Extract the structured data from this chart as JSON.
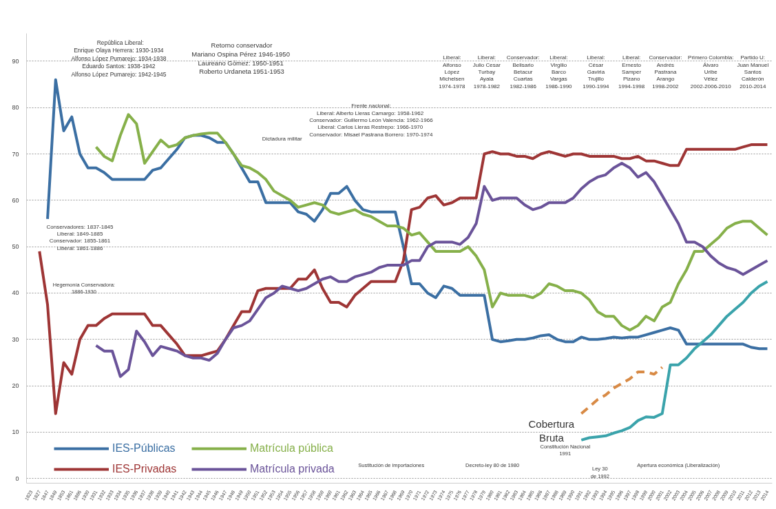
{
  "chart_data": {
    "type": "line",
    "categories": [
      "1823",
      "1827",
      "1847",
      "1849",
      "1853",
      "1861",
      "1886",
      "1930",
      "1931",
      "1932",
      "1933",
      "1934",
      "1935",
      "1936",
      "1937",
      "1938",
      "1939",
      "1940",
      "1941",
      "1942",
      "1943",
      "1944",
      "1945",
      "1946",
      "1947",
      "1948",
      "1949",
      "1950",
      "1951",
      "1952",
      "1953",
      "1954",
      "1955",
      "1956",
      "1957",
      "1958",
      "1959",
      "1960",
      "1961",
      "1962",
      "1963",
      "1964",
      "1965",
      "1966",
      "1967",
      "1968",
      "1969",
      "1970",
      "1971",
      "1972",
      "1973",
      "1974",
      "1975",
      "1976",
      "1977",
      "1978",
      "1979",
      "1980",
      "1981",
      "1982",
      "1983",
      "1984",
      "1985",
      "1986",
      "1987",
      "1988",
      "1989",
      "1990",
      "1991",
      "1992",
      "1993",
      "1994",
      "1995",
      "1996",
      "1997",
      "1998",
      "1999",
      "2000",
      "2001",
      "2002",
      "2003",
      "2004",
      "2005",
      "2006",
      "2007",
      "2008",
      "2009",
      "2010",
      "2011",
      "2012",
      "2013",
      "2014"
    ],
    "series": [
      {
        "name": "IES-Públicas",
        "color": "#3b6fa3",
        "values": [
          null,
          null,
          56,
          86,
          75,
          78,
          70,
          67,
          67,
          66,
          64.5,
          64.5,
          64.5,
          64.5,
          64.5,
          66.5,
          67,
          69,
          71,
          73.5,
          74,
          74,
          73.5,
          72.5,
          72.5,
          70,
          67,
          64,
          64,
          59.5,
          59.5,
          59.5,
          59.5,
          57.5,
          57,
          55.5,
          58,
          61.5,
          61.5,
          63,
          60,
          58,
          57.5,
          57.5,
          57.5,
          57.5,
          50,
          42,
          42,
          40,
          39,
          41.5,
          41,
          39.5,
          39.5,
          39.5,
          39.5,
          30,
          29.5,
          29.7,
          30,
          30,
          30.3,
          30.8,
          31,
          30,
          29.5,
          29.5,
          30.5,
          30,
          30,
          30.2,
          30.5,
          30.3,
          30.5,
          30.5,
          31,
          31.5,
          32,
          32.5,
          32,
          29,
          29,
          29,
          29,
          29,
          29,
          29,
          29,
          28.3,
          28,
          28
        ]
      },
      {
        "name": "IES-Privadas",
        "color": "#9e3535",
        "values": [
          null,
          49,
          37.5,
          14,
          25,
          22.5,
          30,
          33,
          33,
          34.5,
          35.5,
          35.5,
          35.5,
          35.5,
          35.5,
          33,
          33,
          31,
          29,
          26.5,
          26.5,
          26.5,
          27,
          27.5,
          30,
          33,
          36,
          36,
          40.5,
          41,
          41,
          41,
          41,
          43,
          43,
          45,
          41,
          38,
          38,
          37,
          39.5,
          41,
          42.5,
          42.5,
          42.5,
          42.5,
          47,
          58,
          58.5,
          60.5,
          61,
          59,
          59.5,
          60.5,
          60.5,
          60.5,
          70,
          70.5,
          70,
          70,
          69.5,
          69.5,
          69,
          70,
          70.5,
          70,
          69.5,
          70,
          70,
          69.5,
          69.5,
          69.5,
          69.5,
          69,
          69,
          69.5,
          68.5,
          68.5,
          68,
          67.5,
          67.5,
          71,
          71,
          71,
          71,
          71,
          71,
          71,
          71.5,
          72,
          72,
          72
        ]
      },
      {
        "name": "Matrícula pública",
        "color": "#86b04a",
        "values": [
          null,
          null,
          null,
          null,
          null,
          null,
          null,
          null,
          71.5,
          69.5,
          68.5,
          74,
          78.5,
          76.5,
          68,
          70.5,
          73,
          71.5,
          72,
          73.5,
          74,
          74.3,
          74.5,
          74.5,
          72.5,
          70,
          67.5,
          67,
          66,
          64.5,
          62,
          61,
          60,
          58.5,
          59,
          59.5,
          59,
          57.5,
          57,
          57.5,
          58,
          57,
          56.5,
          55.5,
          54.5,
          54.5,
          54,
          52.5,
          53,
          51,
          49,
          49,
          49,
          49,
          50,
          48,
          45,
          37,
          40,
          39.5,
          39.5,
          39.5,
          39,
          40,
          42,
          41.5,
          40.5,
          40.5,
          40,
          38.5,
          36,
          35,
          35,
          33,
          32,
          33,
          35,
          34,
          37,
          38,
          42,
          45,
          49,
          49,
          50.5,
          52,
          54,
          55,
          55.5,
          55.5,
          54,
          52.5
        ]
      },
      {
        "name": "Matrícula privada",
        "color": "#6a5399",
        "values": [
          null,
          null,
          null,
          null,
          null,
          null,
          null,
          null,
          28.7,
          27.5,
          27.5,
          22,
          23.5,
          31.8,
          29.5,
          26.5,
          28.5,
          28,
          27.5,
          26.5,
          26,
          26,
          25.5,
          27,
          30,
          32.5,
          33,
          34,
          36.5,
          39,
          40,
          41.5,
          41,
          40.5,
          41,
          42,
          43,
          43.5,
          42.5,
          42.5,
          43.5,
          44,
          44.5,
          45.5,
          46,
          46,
          46,
          47,
          47,
          50,
          51,
          51,
          51,
          50.5,
          52,
          55,
          63,
          60,
          60.5,
          60.5,
          60.5,
          59,
          58,
          58.5,
          59.5,
          59.5,
          59.5,
          60.5,
          62.5,
          64,
          65,
          65.5,
          67,
          68,
          67,
          65,
          66,
          64,
          61,
          58,
          55,
          51,
          51,
          50,
          48,
          46.5,
          45.5,
          45,
          44,
          45,
          46,
          47
        ]
      },
      {
        "color": "#3aa3ab",
        "values": [
          null,
          null,
          null,
          null,
          null,
          null,
          null,
          null,
          null,
          null,
          null,
          null,
          null,
          null,
          null,
          null,
          null,
          null,
          null,
          null,
          null,
          null,
          null,
          null,
          null,
          null,
          null,
          null,
          null,
          null,
          null,
          null,
          null,
          null,
          null,
          null,
          null,
          null,
          null,
          null,
          null,
          null,
          null,
          null,
          null,
          null,
          null,
          null,
          null,
          null,
          null,
          null,
          null,
          null,
          null,
          null,
          null,
          null,
          null,
          null,
          null,
          null,
          null,
          null,
          null,
          null,
          null,
          null,
          8.3,
          8.8,
          9,
          9.2,
          9.8,
          10.3,
          11,
          12.5,
          13.3,
          13.2,
          14,
          24.5,
          24.5,
          26,
          28,
          29.5,
          31,
          33,
          35,
          36.5,
          38,
          40,
          41.5,
          42.5
        ]
      },
      {
        "color": "#d88a45",
        "line_style": "dashed",
        "values": [
          null,
          null,
          null,
          null,
          null,
          null,
          null,
          null,
          null,
          null,
          null,
          null,
          null,
          null,
          null,
          null,
          null,
          null,
          null,
          null,
          null,
          null,
          null,
          null,
          null,
          null,
          null,
          null,
          null,
          null,
          null,
          null,
          null,
          null,
          null,
          null,
          null,
          null,
          null,
          null,
          null,
          null,
          null,
          null,
          null,
          null,
          null,
          null,
          null,
          null,
          null,
          null,
          null,
          null,
          null,
          null,
          null,
          null,
          null,
          null,
          null,
          null,
          null,
          null,
          null,
          null,
          null,
          null,
          14,
          15.5,
          17,
          18,
          19.5,
          20.5,
          21.5,
          23,
          23,
          22.5,
          24,
          null,
          null,
          null,
          null,
          null,
          null,
          null,
          null,
          null,
          null,
          null,
          null,
          null
        ]
      }
    ],
    "ylim": [
      -1,
      96
    ],
    "yticks": [
      0,
      10,
      20,
      30,
      40,
      50,
      60,
      70,
      80,
      90
    ],
    "grid": "y",
    "legend": "bottom left",
    "annotations": [
      "República Liberal:\nEnrique Olaya Herrera:   1930-1934\nAlfonso López Pumarejo:   1934-1938\nEduardo Santos:   1938-1942\nAlfonso López Pumarejo:   1942-1945",
      "Retorno conservador\nMariano Ospina Pérez  1946-1950\nLaureano Gómez:  1950-1951\nRoberto Urdaneta 1951-1953",
      "Frente nacional:\nLiberal: Alberto Lleras Camargo:  1958-1962\nConservador: Guillermo León Valencia: 1962-1966\nLiberal: Carlos Lleras Restrepo:  1966-1970\nConservador: Misael Pastrana Borrero: 1970-1974",
      "Dictadura militar",
      "Liberal:\nAlfonso\nLópez\nMichelsen\n1974-1978",
      "Liberal:\nJulio Cesar\nTurbay\nAyala\n1978-1982",
      "Conservador:\nBelisario\nBetacur\nCuartas\n1982-1986",
      "Liberal:\nVirgilio\nBarco\nVargas\n1986-1990",
      "Liberal:\nCésar\nGaviria\nTrujillo\n1990-1994",
      "Liberal:\nErnesto\nSamper\nPizano\n1994-1998",
      "Conservador:\nAndrés\nPastrana\nArango\n1998-2002",
      "Primero Colombia:\nÁlvaro\nUribe\nVélez\n2002-2006-2010",
      "Partido U:\nJuan Manuel\nSantos\nCalderón\n2010-2014",
      "Conservadores: 1837-1845\nLiberal: 1849-1885\nConservador: 1855-1861\nLiberal: 1861-1886",
      "Hegemonía Conservadora:\n1886-1930",
      "Cobertura\nBruta",
      "Sustitución de importaciones",
      "Decreto-ley 80 de 1980",
      "Constitución Nacional\n1991",
      "Ley 30\nde 1992",
      "Apertura económica (Liberalización)"
    ]
  }
}
